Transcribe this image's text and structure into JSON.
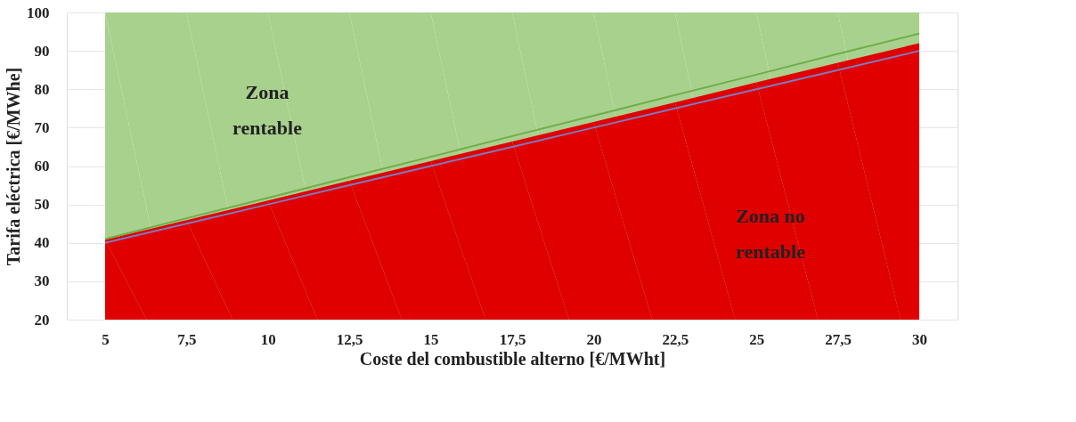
{
  "chart_data": {
    "type": "area",
    "xlabel": "Coste del combustible alterno [€/MWht]",
    "ylabel": "Tarifa eléctrica [€/MWhe]",
    "categories": [
      "5",
      "7,5",
      "10",
      "12,5",
      "15",
      "17,5",
      "20",
      "22,5",
      "25",
      "27,5",
      "30"
    ],
    "series": [
      {
        "color": "#a9d18e",
        "values": [
          100,
          100,
          100,
          100,
          100,
          100,
          100,
          100,
          100,
          100,
          100
        ]
      },
      {
        "color": "#e00000",
        "values": [
          40.8,
          45.9,
          51.0,
          56.2,
          61.3,
          66.4,
          71.5,
          76.6,
          81.8,
          86.9,
          92.0
        ]
      },
      {
        "type": "line",
        "color": "#7b7bc0",
        "values": [
          40,
          45,
          50,
          55,
          60,
          65,
          70,
          75,
          80,
          85,
          90
        ]
      },
      {
        "type": "line",
        "color": "#70ad47",
        "values": [
          41,
          46.4,
          51.7,
          57.1,
          62.4,
          67.8,
          73.1,
          78.5,
          83.8,
          89.2,
          94.5
        ]
      }
    ],
    "ylim": [
      20,
      100
    ],
    "yticks": [
      20,
      30,
      40,
      50,
      60,
      70,
      80,
      90,
      100
    ],
    "grid": "y",
    "annotations": [
      "Zona\nrentable",
      "Zona no\nrentable"
    ]
  }
}
